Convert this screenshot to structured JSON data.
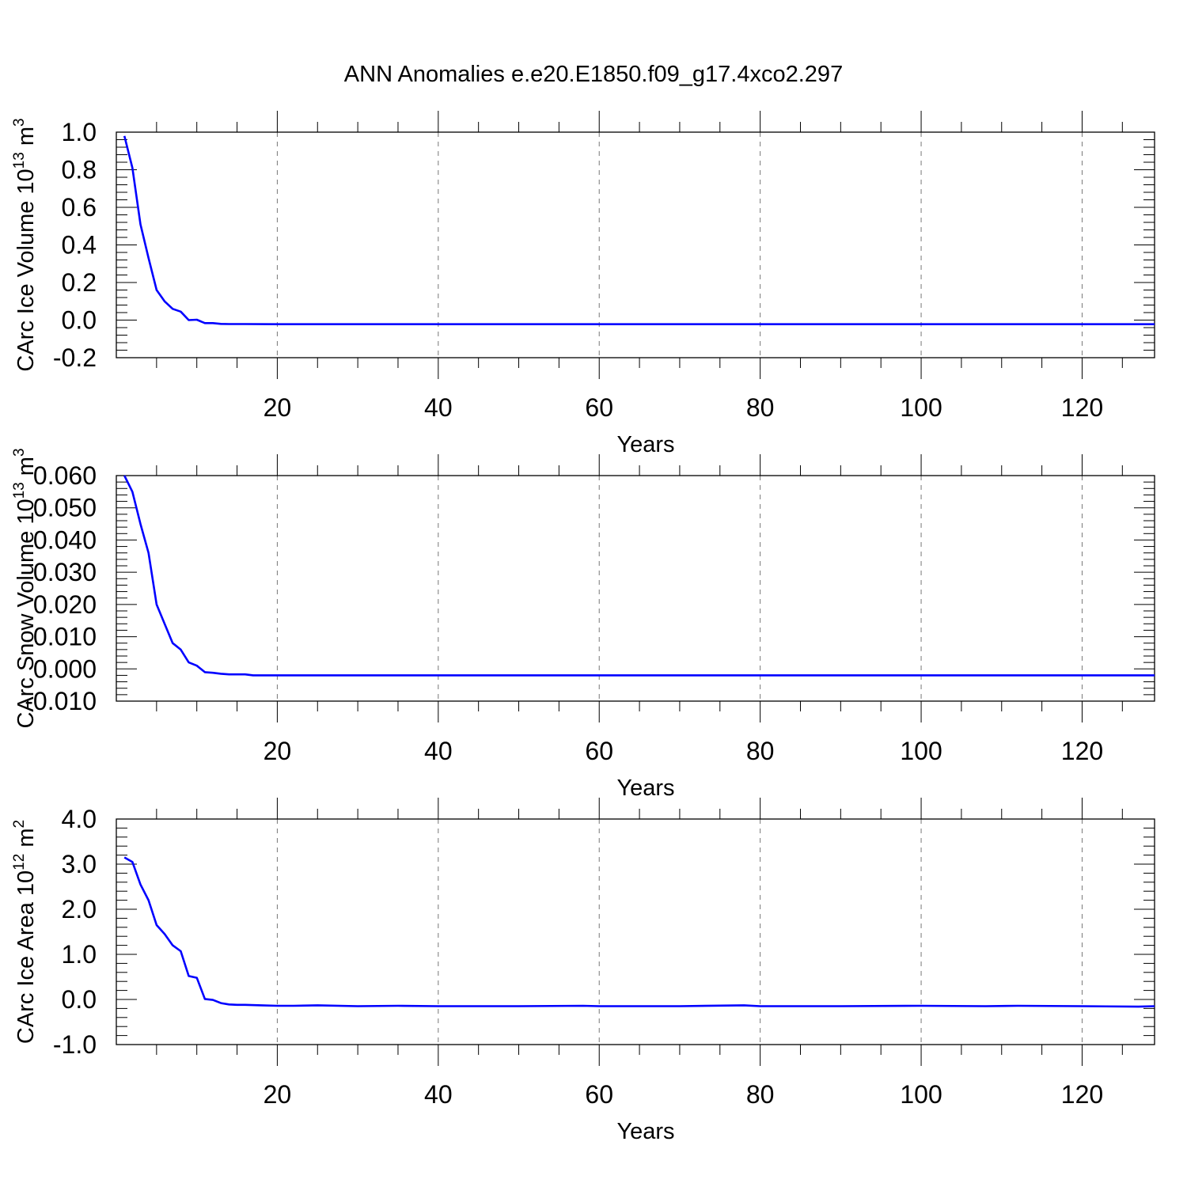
{
  "title": "ANN Anomalies e.e20.E1850.f09_g17.4xco2.297",
  "colors": {
    "series": "#0000ff",
    "axis": "#000000",
    "grid": "#777777"
  },
  "chart_data": [
    {
      "type": "line",
      "ylabel": "CArc Ice Volume 10",
      "ylabel_exp": "13",
      "ylabel_unit": " m",
      "ylabel_unit_exp": "3",
      "xlabel": "Years",
      "xlim": [
        0,
        129
      ],
      "ylim": [
        -0.2,
        1.0
      ],
      "y_ticks": [
        -0.2,
        0.0,
        0.2,
        0.4,
        0.6,
        0.8,
        1.0
      ],
      "y_tick_labels": [
        "-0.2",
        "0.0",
        "0.2",
        "0.4",
        "0.6",
        "0.8",
        "1.0"
      ],
      "y_minor_step": 0.04,
      "x_ticks": [
        20,
        40,
        60,
        80,
        100,
        120
      ],
      "x_tick_labels": [
        "20",
        "40",
        "60",
        "80",
        "100",
        "120"
      ],
      "grid": "dashed vertical at major x ticks",
      "points": [
        [
          1,
          0.98
        ],
        [
          2,
          0.81
        ],
        [
          3,
          0.51
        ],
        [
          4,
          0.33
        ],
        [
          5,
          0.16
        ],
        [
          6,
          0.1
        ],
        [
          7,
          0.06
        ],
        [
          8,
          0.045
        ],
        [
          9,
          0.0
        ],
        [
          10,
          0.002
        ],
        [
          11,
          -0.016
        ],
        [
          12,
          -0.016
        ],
        [
          13,
          -0.02
        ],
        [
          14,
          -0.021
        ],
        [
          16,
          -0.021
        ],
        [
          20,
          -0.022
        ],
        [
          30,
          -0.022
        ],
        [
          60,
          -0.022
        ],
        [
          90,
          -0.022
        ],
        [
          129,
          -0.022
        ]
      ]
    },
    {
      "type": "line",
      "ylabel": "CArc Snow Volume 10",
      "ylabel_exp": "13",
      "ylabel_unit": " m",
      "ylabel_unit_exp": "3",
      "xlabel": "Years",
      "xlim": [
        0,
        129
      ],
      "ylim": [
        -0.01,
        0.06
      ],
      "y_ticks": [
        -0.01,
        0.0,
        0.01,
        0.02,
        0.03,
        0.04,
        0.05,
        0.06
      ],
      "y_tick_labels": [
        "-0.010",
        "0.000",
        "0.010",
        "0.020",
        "0.030",
        "0.040",
        "0.050",
        "0.060"
      ],
      "y_minor_step": 0.002,
      "x_ticks": [
        20,
        40,
        60,
        80,
        100,
        120
      ],
      "x_tick_labels": [
        "20",
        "40",
        "60",
        "80",
        "100",
        "120"
      ],
      "grid": "dashed vertical at major x ticks",
      "points": [
        [
          1,
          0.06
        ],
        [
          2,
          0.055
        ],
        [
          3,
          0.045
        ],
        [
          4,
          0.036
        ],
        [
          5,
          0.02
        ],
        [
          6,
          0.014
        ],
        [
          7,
          0.008
        ],
        [
          8,
          0.006
        ],
        [
          9,
          0.002
        ],
        [
          10,
          0.001
        ],
        [
          11,
          -0.001
        ],
        [
          12,
          -0.0012
        ],
        [
          13,
          -0.0015
        ],
        [
          14,
          -0.0017
        ],
        [
          16,
          -0.0017
        ],
        [
          17,
          -0.002
        ],
        [
          20,
          -0.002
        ],
        [
          40,
          -0.002
        ],
        [
          80,
          -0.002
        ],
        [
          129,
          -0.002
        ]
      ]
    },
    {
      "type": "line",
      "ylabel": "CArc Ice Area 10",
      "ylabel_exp": "12",
      "ylabel_unit": " m",
      "ylabel_unit_exp": "2",
      "xlabel": "Years",
      "xlim": [
        0,
        129
      ],
      "ylim": [
        -1.0,
        4.0
      ],
      "y_ticks": [
        -1.0,
        0.0,
        1.0,
        2.0,
        3.0,
        4.0
      ],
      "y_tick_labels": [
        "-1.0",
        "0.0",
        "1.0",
        "2.0",
        "3.0",
        "4.0"
      ],
      "y_minor_step": 0.2,
      "x_ticks": [
        20,
        40,
        60,
        80,
        100,
        120
      ],
      "x_tick_labels": [
        "20",
        "40",
        "60",
        "80",
        "100",
        "120"
      ],
      "grid": "dashed vertical at major x ticks",
      "points": [
        [
          1,
          3.15
        ],
        [
          2,
          3.05
        ],
        [
          3,
          2.55
        ],
        [
          4,
          2.2
        ],
        [
          5,
          1.65
        ],
        [
          6,
          1.45
        ],
        [
          7,
          1.2
        ],
        [
          8,
          1.07
        ],
        [
          9,
          0.52
        ],
        [
          10,
          0.48
        ],
        [
          11,
          0.01
        ],
        [
          12,
          -0.01
        ],
        [
          13,
          -0.08
        ],
        [
          14,
          -0.11
        ],
        [
          15,
          -0.12
        ],
        [
          16,
          -0.12
        ],
        [
          18,
          -0.13
        ],
        [
          20,
          -0.14
        ],
        [
          22,
          -0.14
        ],
        [
          25,
          -0.13
        ],
        [
          30,
          -0.15
        ],
        [
          35,
          -0.14
        ],
        [
          40,
          -0.15
        ],
        [
          50,
          -0.15
        ],
        [
          58,
          -0.14
        ],
        [
          60,
          -0.15
        ],
        [
          70,
          -0.15
        ],
        [
          78,
          -0.13
        ],
        [
          80,
          -0.15
        ],
        [
          90,
          -0.15
        ],
        [
          100,
          -0.14
        ],
        [
          108,
          -0.15
        ],
        [
          112,
          -0.14
        ],
        [
          120,
          -0.15
        ],
        [
          127,
          -0.16
        ],
        [
          129,
          -0.15
        ]
      ]
    }
  ]
}
